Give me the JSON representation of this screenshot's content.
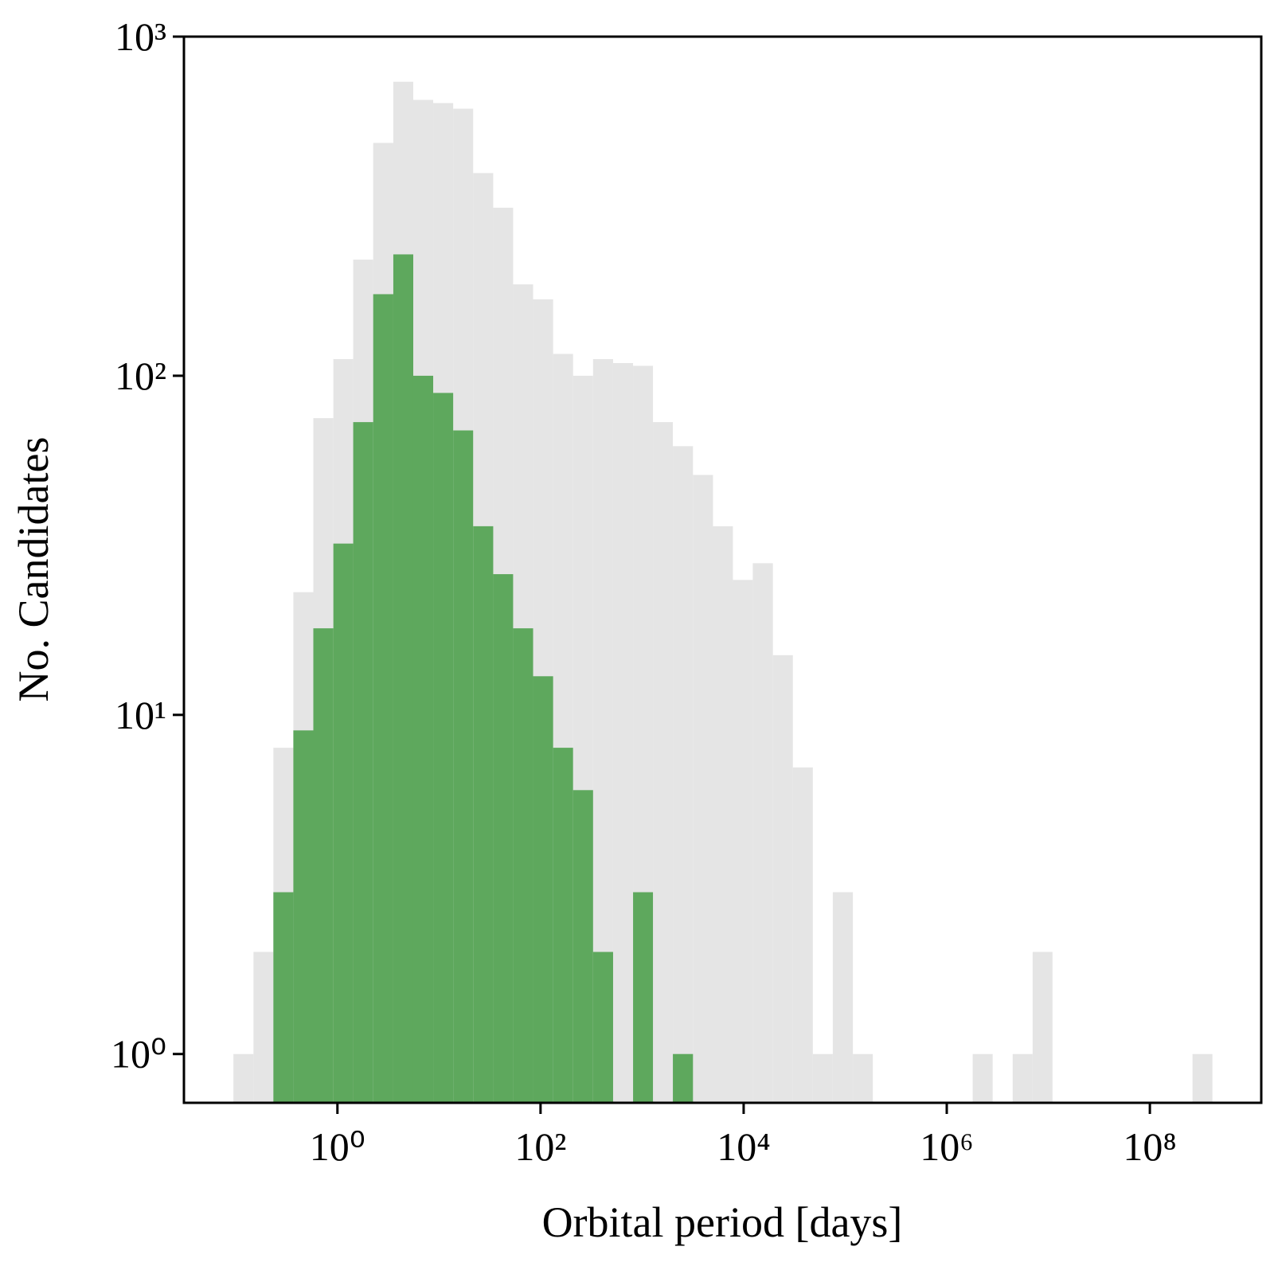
{
  "chart_data": {
    "type": "histogram",
    "x_label": "Orbital period [days]",
    "y_label": "No. Candidates",
    "xscale": "log",
    "yscale": "log",
    "xlim": [
      0.0308,
      1250000000
    ],
    "ylim": [
      0.718,
      1000
    ],
    "xticks": [
      {
        "value": 1,
        "label": "10⁰"
      },
      {
        "value": 100,
        "label": "10²"
      },
      {
        "value": 10000,
        "label": "10⁴"
      },
      {
        "value": 1000000,
        "label": "10⁶"
      },
      {
        "value": 100000000,
        "label": "10⁸"
      }
    ],
    "yticks": [
      {
        "value": 1,
        "label": "10⁰"
      },
      {
        "value": 10,
        "label": "10¹"
      },
      {
        "value": 100,
        "label": "10²"
      },
      {
        "value": 1000,
        "label": "10³"
      }
    ],
    "bins": [
      0.0946,
      0.149,
      0.234,
      0.368,
      0.579,
      0.912,
      1.43,
      2.25,
      3.55,
      5.58,
      8.77,
      13.8,
      21.7,
      34.2,
      53.7,
      84.5,
      133,
      209,
      329,
      518,
      815,
      1280,
      2010,
      3170,
      4990,
      7840,
      12300,
      19400,
      30500,
      48000,
      75500,
      119000,
      187000,
      294000,
      462000,
      728000,
      1150000,
      1800000,
      2830000,
      4460000,
      7010000,
      11000000,
      17300000,
      27300000,
      42900000,
      67500000,
      106000000,
      167000000,
      263000000,
      413000000
    ],
    "series": [
      {
        "color": "#e5e5e5",
        "values": [
          1,
          2,
          8,
          23,
          75,
          112,
          220,
          486,
          736,
          651,
          637,
          613,
          396,
          313,
          186,
          168,
          116,
          100,
          112,
          109,
          107,
          73,
          62,
          51,
          36,
          25,
          28,
          15,
          7,
          1,
          3,
          1,
          0,
          0,
          0,
          0,
          0,
          1,
          0,
          1,
          2,
          0,
          0,
          0,
          0,
          0,
          0,
          0,
          1
        ]
      },
      {
        "color": "#5ea85d",
        "values": [
          0,
          0,
          3,
          9,
          18,
          32,
          73,
          174,
          228,
          100,
          89,
          69,
          36,
          26,
          18,
          13,
          8,
          6,
          2,
          0,
          3,
          0,
          1,
          0,
          0,
          0,
          0,
          0,
          0,
          0,
          0,
          0,
          0,
          0,
          0,
          0,
          0,
          0,
          0,
          0,
          0,
          0,
          0,
          0,
          0,
          0,
          0,
          0,
          0
        ]
      }
    ]
  }
}
